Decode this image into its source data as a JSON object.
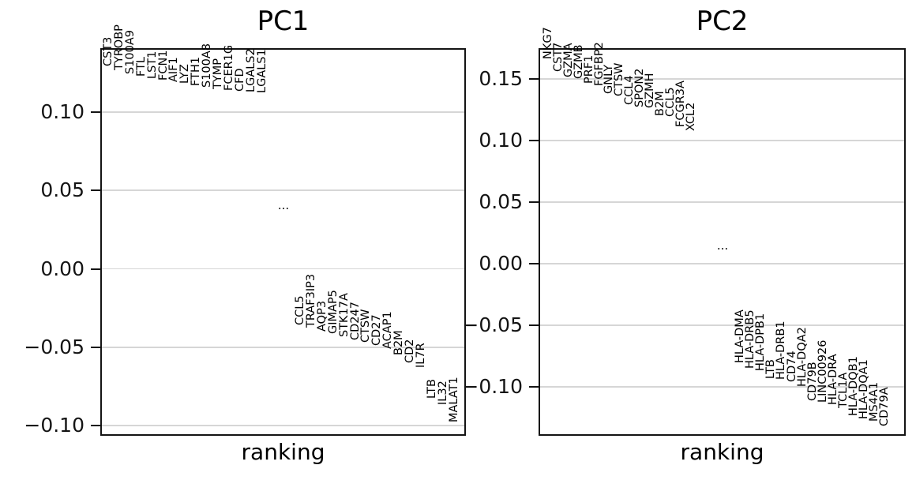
{
  "figure": {
    "background_color": "#ffffff",
    "axes_color": "#141414",
    "grid_color": "#d6d6d6",
    "text_color": "#000000"
  },
  "chart_data": [
    {
      "type": "scatter",
      "marker": "gene-name-text-rotated-vertical",
      "title": "PC1",
      "xlabel": "ranking",
      "grid": true,
      "ylim": [
        -0.1075,
        0.1398
      ],
      "yticks": [
        {
          "value": 0.1,
          "label": "0.10"
        },
        {
          "value": 0.05,
          "label": "0.05"
        },
        {
          "value": 0.0,
          "label": "0.00"
        },
        {
          "value": -0.05,
          "label": "−0.05"
        },
        {
          "value": -0.1,
          "label": "−0.10"
        }
      ],
      "top_genes": [
        {
          "name": "CST3",
          "value": 0.129
        },
        {
          "name": "TYROBP",
          "value": 0.1265
        },
        {
          "name": "S100A9",
          "value": 0.124
        },
        {
          "name": "FTL",
          "value": 0.1225
        },
        {
          "name": "LST1",
          "value": 0.121
        },
        {
          "name": "FCN1",
          "value": 0.12
        },
        {
          "name": "AIF1",
          "value": 0.119
        },
        {
          "name": "LYZ",
          "value": 0.118
        },
        {
          "name": "FTH1",
          "value": 0.1165
        },
        {
          "name": "S100A8",
          "value": 0.1155
        },
        {
          "name": "TYMP",
          "value": 0.1145
        },
        {
          "name": "FCER1G",
          "value": 0.1135
        },
        {
          "name": "CFD",
          "value": 0.113
        },
        {
          "name": "LGALS2",
          "value": 0.1125
        },
        {
          "name": "LGALS1",
          "value": 0.112
        }
      ],
      "ellipsis": {
        "label": "...",
        "value": 0.039
      },
      "bottom_genes": [
        {
          "name": "CCL5",
          "value": -0.036
        },
        {
          "name": "TRAF3IP3",
          "value": -0.0375
        },
        {
          "name": "AQP3",
          "value": -0.04
        },
        {
          "name": "GIMAP5",
          "value": -0.0415
        },
        {
          "name": "STK17A",
          "value": -0.0435
        },
        {
          "name": "CD247",
          "value": -0.0455
        },
        {
          "name": "CTSW",
          "value": -0.047
        },
        {
          "name": "CD27",
          "value": -0.049
        },
        {
          "name": "ACAP1",
          "value": -0.051
        },
        {
          "name": "B2M",
          "value": -0.055
        },
        {
          "name": "CD2",
          "value": -0.06
        },
        {
          "name": "IL7R",
          "value": -0.063
        },
        {
          "name": "LTB",
          "value": -0.083
        },
        {
          "name": "IL32",
          "value": -0.087
        },
        {
          "name": "MALAT1",
          "value": -0.098
        }
      ]
    },
    {
      "type": "scatter",
      "marker": "gene-name-text-rotated-vertical",
      "title": "PC2",
      "xlabel": "ranking",
      "grid": true,
      "ylim": [
        -0.141,
        0.1737
      ],
      "yticks": [
        {
          "value": 0.15,
          "label": "0.15"
        },
        {
          "value": 0.1,
          "label": "0.10"
        },
        {
          "value": 0.05,
          "label": "0.05"
        },
        {
          "value": 0.0,
          "label": "0.00"
        },
        {
          "value": -0.05,
          "label": "−0.05"
        },
        {
          "value": -0.1,
          "label": "−0.10"
        }
      ],
      "top_genes": [
        {
          "name": "NKG7",
          "value": 0.166
        },
        {
          "name": "CST7",
          "value": 0.156
        },
        {
          "name": "GZMA",
          "value": 0.151
        },
        {
          "name": "GZMB",
          "value": 0.15
        },
        {
          "name": "PRF1",
          "value": 0.146
        },
        {
          "name": "FGFBP2",
          "value": 0.144
        },
        {
          "name": "GNLY",
          "value": 0.138
        },
        {
          "name": "CTSW",
          "value": 0.136
        },
        {
          "name": "CCL4",
          "value": 0.129
        },
        {
          "name": "SPON2",
          "value": 0.127
        },
        {
          "name": "GZMH",
          "value": 0.126
        },
        {
          "name": "B2M",
          "value": 0.12
        },
        {
          "name": "CCL5",
          "value": 0.119
        },
        {
          "name": "FCGR3A",
          "value": 0.111
        },
        {
          "name": "XCL2",
          "value": 0.108
        }
      ],
      "ellipsis": {
        "label": "...",
        "value": 0.013
      },
      "bottom_genes": [
        {
          "name": "HLA-DMA",
          "value": -0.081
        },
        {
          "name": "HLA-DRB5",
          "value": -0.085
        },
        {
          "name": "HLA-DPB1",
          "value": -0.087
        },
        {
          "name": "LTB",
          "value": -0.0935
        },
        {
          "name": "HLA-DRB1",
          "value": -0.094
        },
        {
          "name": "CD74",
          "value": -0.096
        },
        {
          "name": "HLA-DQA2",
          "value": -0.1
        },
        {
          "name": "CD79B",
          "value": -0.1115
        },
        {
          "name": "LINC00926",
          "value": -0.113
        },
        {
          "name": "HLA-DRA",
          "value": -0.115
        },
        {
          "name": "TCL1A",
          "value": -0.117
        },
        {
          "name": "HLA-DQB1",
          "value": -0.124
        },
        {
          "name": "HLA-DQA1",
          "value": -0.126
        },
        {
          "name": "MS4A1",
          "value": -0.128
        },
        {
          "name": "CD79A",
          "value": -0.132
        }
      ]
    }
  ]
}
